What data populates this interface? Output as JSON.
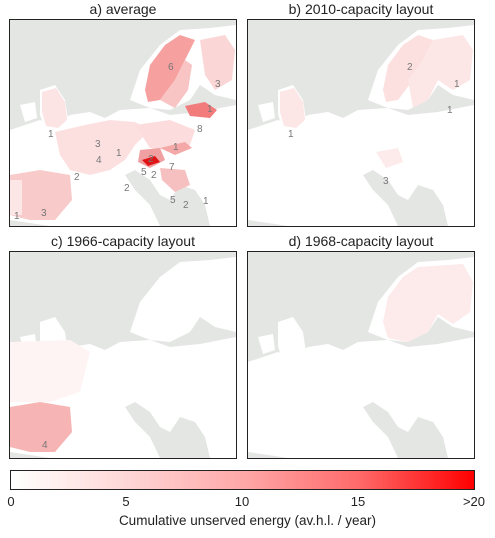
{
  "panels": [
    {
      "title": "a) average",
      "labels": [
        {
          "id": "norway",
          "text": "6"
        },
        {
          "id": "finland",
          "text": "3"
        },
        {
          "id": "baltic-north",
          "text": "1"
        },
        {
          "id": "baltic-south",
          "text": "8"
        },
        {
          "id": "uk",
          "text": "1"
        },
        {
          "id": "denmark",
          "text": "3"
        },
        {
          "id": "netherlands",
          "text": "4"
        },
        {
          "id": "germany",
          "text": "1"
        },
        {
          "id": "poland",
          "text": "1"
        },
        {
          "id": "france",
          "text": "2"
        },
        {
          "id": "czech",
          "text": "2"
        },
        {
          "id": "ukraine",
          "text": "7"
        },
        {
          "id": "alps",
          "text": "2"
        },
        {
          "id": "austria",
          "text": "5"
        },
        {
          "id": "hungary",
          "text": "2"
        },
        {
          "id": "balkan",
          "text": "5"
        },
        {
          "id": "greece",
          "text": "2"
        },
        {
          "id": "romania",
          "text": "1"
        },
        {
          "id": "portugal",
          "text": "1"
        },
        {
          "id": "spain",
          "text": "3"
        }
      ]
    },
    {
      "title": "b) 2010-capacity layout",
      "labels": [
        {
          "id": "norway",
          "text": "2"
        },
        {
          "id": "finland",
          "text": "1"
        },
        {
          "id": "baltic",
          "text": "1"
        },
        {
          "id": "uk",
          "text": "1"
        },
        {
          "id": "hungary",
          "text": "3"
        }
      ]
    },
    {
      "title": "c) 1966-capacity layout",
      "labels": [
        {
          "id": "spain",
          "text": "4"
        }
      ]
    },
    {
      "title": "d) 1968-capacity layout",
      "labels": []
    }
  ],
  "colorbar": {
    "ticks": [
      "0",
      "5",
      "10",
      "15",
      ">20"
    ],
    "label": "Cumulative unserved energy (av.h.l. / year)",
    "min_color": "#ffffff",
    "max_color": "#ff0000"
  },
  "colors": {
    "sea": "#e4e6e4",
    "land": "#ffffff",
    "frame": "#222222"
  }
}
